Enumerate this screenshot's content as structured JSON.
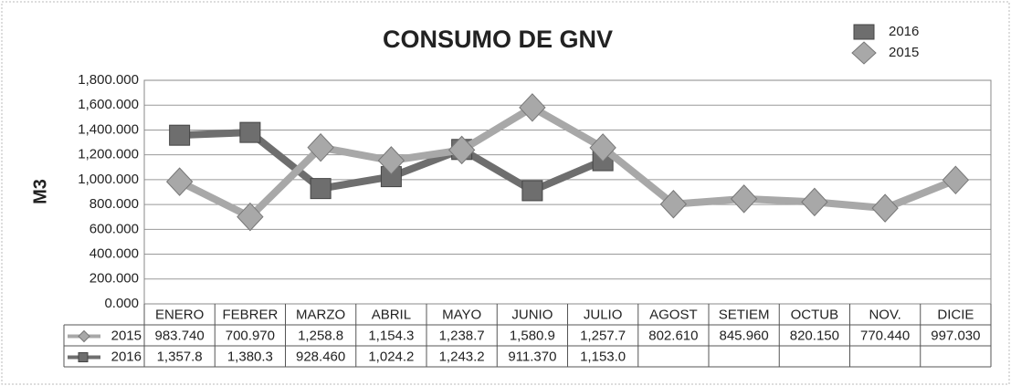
{
  "chart_data": {
    "type": "line",
    "title": "CONSUMO DE GNV",
    "y_label": "M3",
    "categories": [
      "ENERO",
      "FEBRER",
      "MARZO",
      "ABRIL",
      "MAYO",
      "JUNIO",
      "JULIO",
      "AGOST",
      "SETIEM",
      "OCTUB",
      "NOV.",
      "DICIE"
    ],
    "series": [
      {
        "name": "2016",
        "color": "#6e6e6e",
        "marker": "square",
        "values": [
          1357.8,
          1380.3,
          928.46,
          1024.2,
          1243.2,
          911.37,
          1153.0,
          null,
          null,
          null,
          null,
          null
        ],
        "value_labels": [
          "1,357.8",
          "1,380.3",
          "928.460",
          "1,024.2",
          "1,243.2",
          "911.370",
          "1,153.0",
          null,
          null,
          null,
          null,
          null
        ]
      },
      {
        "name": "2015",
        "color": "#a8a8a8",
        "marker": "diamond",
        "values": [
          983.74,
          700.97,
          1258.8,
          1154.3,
          1238.7,
          1580.9,
          1257.7,
          802.61,
          845.96,
          820.15,
          770.44,
          997.03
        ],
        "value_labels": [
          "983.740",
          "700.970",
          "1,258.8",
          "1,154.3",
          "1,238.7",
          "1,580.9",
          "1,257.7",
          "802.610",
          "845.960",
          "820.150",
          "770.440",
          "997.030"
        ]
      }
    ],
    "ylim": [
      0,
      1800
    ],
    "yticks": [
      {
        "value": 0,
        "label": "0.000"
      },
      {
        "value": 200,
        "label": "200.000"
      },
      {
        "value": 400,
        "label": "400.000"
      },
      {
        "value": 600,
        "label": "600.000"
      },
      {
        "value": 800,
        "label": "800.000"
      },
      {
        "value": 1000,
        "label": "1,000.000"
      },
      {
        "value": 1200,
        "label": "1,200.000"
      },
      {
        "value": 1400,
        "label": "1,400.000"
      },
      {
        "value": 1600,
        "label": "1,600.000"
      },
      {
        "value": 1800,
        "label": "1,800.000"
      }
    ],
    "grid": true,
    "legend": "top-right",
    "data_table": true
  }
}
